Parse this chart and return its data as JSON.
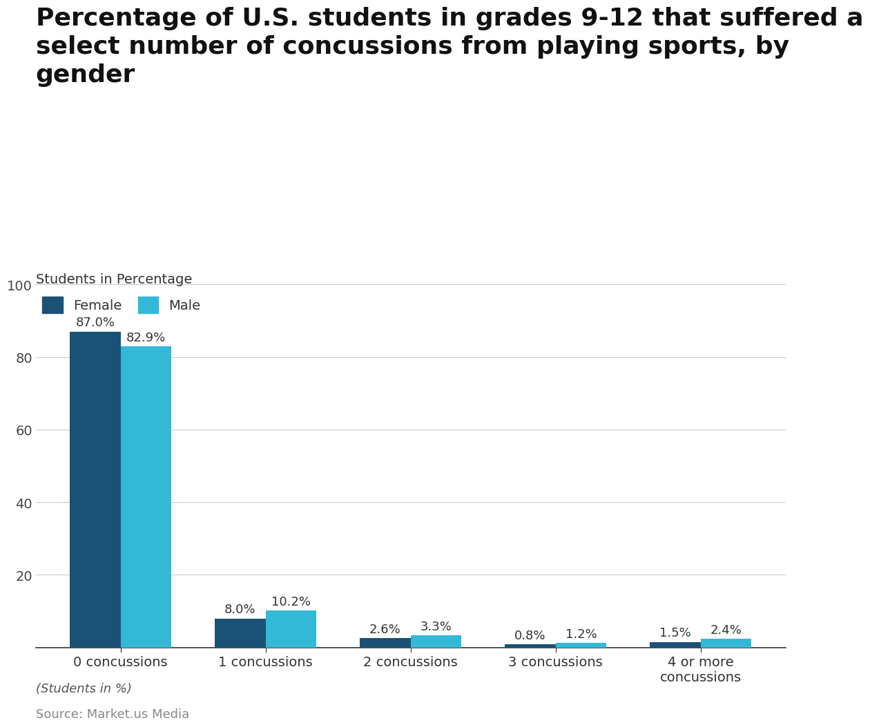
{
  "title_line1": "Percentage of U.S. students in grades 9-12 that suffered a",
  "title_line2": "select number of concussions from playing sports, by",
  "title_line3": "gender",
  "subtitle": "Students in Percentage",
  "categories": [
    "0 concussions",
    "1 concussions",
    "2 concussions",
    "3 concussions",
    "4 or more\nconcussions"
  ],
  "female_values": [
    87.0,
    8.0,
    2.6,
    0.8,
    1.5
  ],
  "male_values": [
    82.9,
    10.2,
    3.3,
    1.2,
    2.4
  ],
  "female_color": "#1a5276",
  "male_color": "#33b8d8",
  "ylim": [
    0,
    110
  ],
  "yticks": [
    20,
    40,
    60,
    80,
    100
  ],
  "footnote": "(Students in %)",
  "source": "Source: Market.us Media",
  "background_color": "#ffffff",
  "grid_color": "#cccccc",
  "title_fontsize": 26,
  "subtitle_fontsize": 14,
  "tick_fontsize": 14,
  "label_fontsize": 13,
  "bar_width": 0.35,
  "legend_labels": [
    "Female",
    "Male"
  ]
}
